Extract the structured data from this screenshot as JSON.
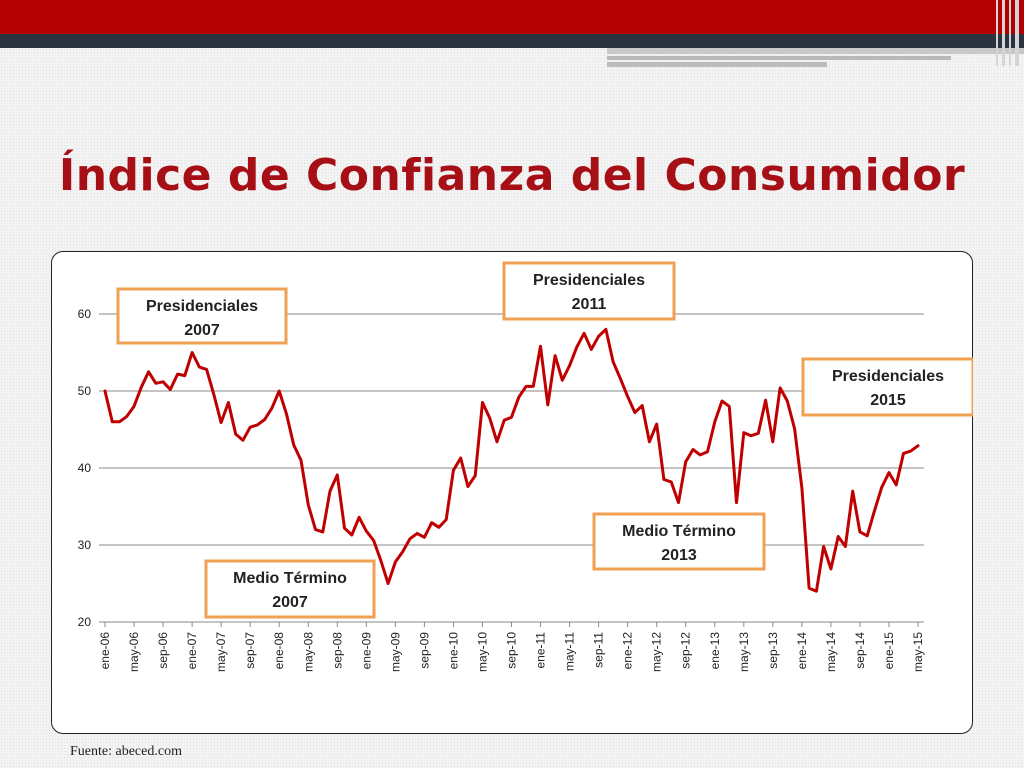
{
  "slide": {
    "title": "Índice de Confianza del Consumidor",
    "source": "Fuente: abeced.com"
  },
  "colors": {
    "header_red": "#b40000",
    "title": "#a50f15",
    "line": "#c00000",
    "callout_border": "#f0a050"
  },
  "chart_data": {
    "type": "line",
    "title": "",
    "xlabel": "",
    "ylabel": "",
    "ylim": [
      20,
      60
    ],
    "yticks": [
      20,
      30,
      40,
      50,
      60
    ],
    "grid": "horizontal",
    "x_tick_labels": [
      "ene-06",
      "may-06",
      "sep-06",
      "ene-07",
      "may-07",
      "sep-07",
      "ene-08",
      "may-08",
      "sep-08",
      "ene-09",
      "may-09",
      "sep-09",
      "ene-10",
      "may-10",
      "sep-10",
      "ene-11",
      "may-11",
      "sep-11",
      "ene-12",
      "may-12",
      "sep-12",
      "ene-13",
      "may-13",
      "sep-13",
      "ene-14",
      "may-14",
      "sep-14",
      "ene-15",
      "may-15"
    ],
    "x_start": "2006-01",
    "series": [
      {
        "values": [
          50.0,
          46.0,
          46.0,
          46.7,
          48.0,
          50.5,
          52.5,
          51.0,
          51.2,
          50.2,
          52.2,
          52.0,
          55.0,
          53.1,
          52.8,
          49.5,
          45.9,
          48.5,
          44.4,
          43.6,
          45.3,
          45.6,
          46.3,
          47.8,
          50.0,
          47.0,
          43.0,
          41.0,
          35.2,
          32.0,
          31.7,
          37.0,
          39.1,
          32.2,
          31.3,
          33.6,
          31.8,
          30.6,
          28.0,
          25.0,
          27.8,
          29.1,
          30.8,
          31.5,
          31.0,
          32.9,
          32.3,
          33.3,
          39.7,
          41.3,
          37.6,
          39.0,
          48.5,
          46.5,
          43.4,
          46.2,
          46.6,
          49.2,
          50.6,
          50.6,
          55.8,
          48.2,
          54.6,
          51.4,
          53.3,
          55.7,
          57.5,
          55.4,
          57.1,
          58.0,
          53.8,
          51.6,
          49.3,
          47.2,
          48.1,
          43.4,
          45.7,
          38.5,
          38.2,
          35.5,
          40.8,
          42.4,
          41.7,
          42.1,
          46.0,
          48.7,
          48.0,
          35.5,
          44.6,
          44.2,
          44.5,
          48.8,
          43.4,
          50.4,
          48.7,
          45.1,
          37.4,
          24.4,
          24.0,
          29.8,
          26.9,
          31.1,
          29.8,
          37.0,
          31.7,
          31.2,
          34.4,
          37.5,
          39.4,
          37.8,
          41.9,
          42.2,
          42.9
        ]
      }
    ],
    "annotations": [
      {
        "text_lines": [
          "Presidenciales",
          "2007"
        ]
      },
      {
        "text_lines": [
          "Presidenciales",
          "2011"
        ]
      },
      {
        "text_lines": [
          "Presidenciales",
          "2015"
        ]
      },
      {
        "text_lines": [
          "Medio Término",
          "2007"
        ]
      },
      {
        "text_lines": [
          "Medio Término",
          "2013"
        ]
      }
    ]
  }
}
